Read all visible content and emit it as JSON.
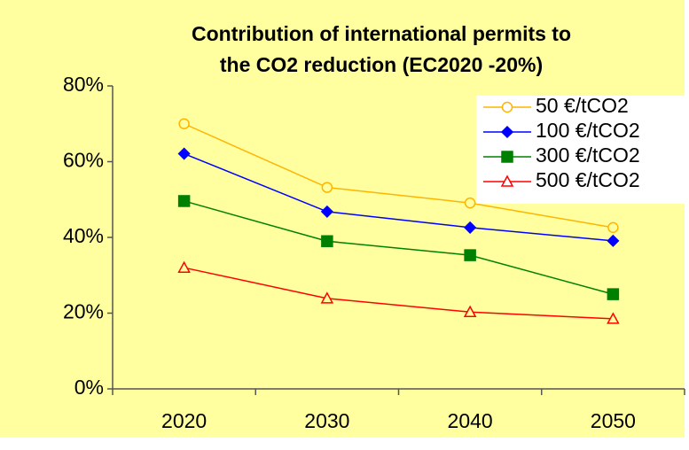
{
  "chart_data": {
    "type": "line",
    "title": [
      "Contribution of international permits to",
      "the CO2 reduction (EC2020 -20%)"
    ],
    "categories": [
      "2020",
      "2030",
      "2040",
      "2050"
    ],
    "series": [
      {
        "name": "50 €/tCO2",
        "color": "#ffb400",
        "marker": "circle",
        "values": [
          70,
          53.2,
          49.1,
          42.6
        ]
      },
      {
        "name": "100 €/tCO2",
        "color": "#0000ff",
        "marker": "diamond",
        "values": [
          62.1,
          46.8,
          42.6,
          39.1
        ]
      },
      {
        "name": "300 €/tCO2",
        "color": "#008000",
        "marker": "square",
        "values": [
          49.6,
          39,
          35.3,
          25
        ]
      },
      {
        "name": "500 €/tCO2",
        "color": "#ff0000",
        "marker": "triangle",
        "values": [
          32,
          23.9,
          20.3,
          18.5
        ]
      }
    ],
    "ylim": [
      0,
      80
    ],
    "yticks": [
      {
        "value": 0,
        "label": "0%"
      },
      {
        "value": 20,
        "label": "20%"
      },
      {
        "value": 40,
        "label": "40%"
      },
      {
        "value": 60,
        "label": "60%"
      },
      {
        "value": 80,
        "label": "80%"
      }
    ],
    "legend": "top-right"
  }
}
